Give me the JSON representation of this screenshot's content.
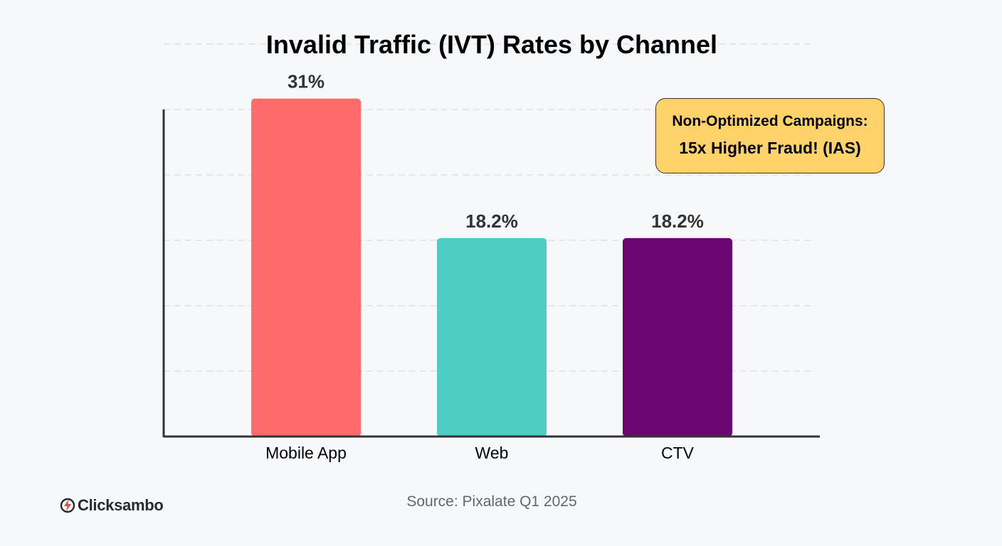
{
  "chart_data": {
    "type": "bar",
    "title": "Invalid Traffic (IVT) Rates by Channel",
    "categories": [
      "Mobile App",
      "Web",
      "CTV"
    ],
    "values": [
      31,
      18.2,
      18.2
    ],
    "data_labels": [
      "31%",
      "18.2%",
      "18.2%"
    ],
    "colors": [
      "#ff6b6b",
      "#4ecdc4",
      "#6a0572"
    ],
    "xlabel": "",
    "ylabel": "",
    "ylim": [
      0,
      36
    ],
    "grid": true,
    "annotation": {
      "line1": "Non-Optimized Campaigns:",
      "line2": "15x Higher Fraud! (IAS)",
      "placement": "top-right"
    }
  },
  "source": "Source: Pixalate Q1 2025",
  "brand": {
    "name": "Clicksambo",
    "icon": "clicksambo-logo-icon",
    "accent": "#e74c3c"
  }
}
